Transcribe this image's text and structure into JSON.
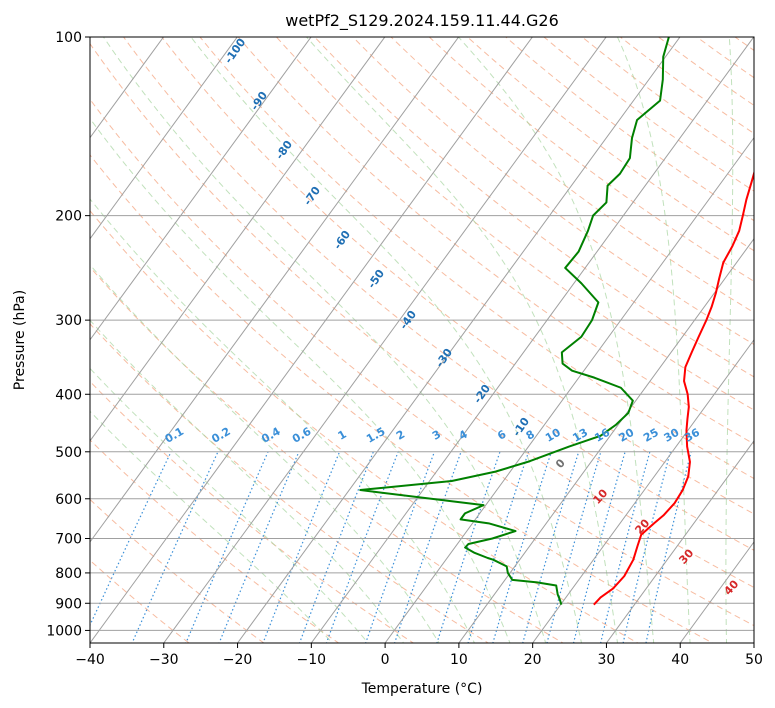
{
  "chart_data": {
    "type": "line",
    "title": "wetPf2_S129.2024.159.11.44.G26",
    "xlabel": "Temperature (°C)",
    "ylabel": "Pressure (hPa)",
    "xlim": [
      -40,
      50
    ],
    "ylim": [
      1050,
      100
    ],
    "y_scale": "log",
    "skew": true,
    "grid": true,
    "x_ticks": [
      -40,
      -30,
      -20,
      -10,
      0,
      10,
      20,
      30,
      40,
      50
    ],
    "y_ticks": [
      100,
      200,
      300,
      400,
      500,
      600,
      700,
      800,
      900,
      1000
    ],
    "series": [
      {
        "color": "#ff0000",
        "x": [
          24.5,
          24.7,
          25.5,
          25.8,
          25.4,
          24.6,
          24.0,
          24.6,
          25.1,
          25.4,
          25.2,
          24.6,
          23.4,
          21.5,
          19.8,
          18.8,
          17.8,
          16.4,
          14.6,
          13.4,
          12.8,
          12.2,
          11.6,
          11.0,
          10.2,
          9.2,
          8.2,
          7.8,
          7.2,
          6.2,
          5.1,
          4.1,
          3.1,
          2.0,
          0.6,
          -0.6,
          -1.6,
          -2.6,
          -3.4
        ],
        "y": [
          905,
          880,
          850,
          810,
          760,
          720,
          690,
          660,
          640,
          610,
          580,
          550,
          520,
          490,
          460,
          440,
          420,
          400,
          380,
          360,
          340,
          320,
          300,
          285,
          270,
          255,
          240,
          225,
          212,
          200,
          188,
          176,
          165,
          155,
          145,
          135,
          125,
          112,
          100
        ]
      },
      {
        "color": "#008000",
        "x": [
          20.1,
          19.5,
          18.6,
          17.5,
          14.6,
          11.0,
          9.7,
          8.9,
          6.4,
          5.5,
          3.2,
          1.4,
          1.5,
          4.2,
          6.6,
          2.2,
          -2.0,
          -2.0,
          -0.3,
          -18.5,
          -7.0,
          -2.0,
          1.4,
          5.5,
          8.7,
          9.7,
          10.2,
          9.6,
          6.7,
          2.1,
          -1.6,
          -3.6,
          -4.8,
          -3.7,
          -3.9,
          -4.8,
          -9.0,
          -12.7,
          -12.5,
          -13.3,
          -14.1,
          -13.6,
          -15.1,
          -14.6,
          -14.8,
          -16.5,
          -17.6,
          -16.4,
          -18.1,
          -20.3,
          -21.5
        ],
        "y": [
          905,
          890,
          870,
          840,
          830,
          822,
          800,
          780,
          760,
          755,
          740,
          725,
          715,
          700,
          680,
          660,
          650,
          635,
          615,
          580,
          560,
          540,
          520,
          490,
          470,
          450,
          430,
          410,
          390,
          375,
          365,
          355,
          340,
          320,
          300,
          280,
          260,
          245,
          230,
          212,
          200,
          190,
          178,
          170,
          160,
          148,
          138,
          128,
          118,
          108,
          100
        ]
      }
    ],
    "dry_adiabat_labels": [
      "-100",
      "-90",
      "-80",
      "-70",
      "-60",
      "-50",
      "-40",
      "-30",
      "-20",
      "-10"
    ],
    "moist_adiabat_labels": [
      "0",
      "10",
      "20",
      "30",
      "40"
    ],
    "mixing_ratio_labels": [
      "0.1",
      "0.2",
      "0.4",
      "0.6",
      "1",
      "1.5",
      "2",
      "3",
      "4",
      "6",
      "8",
      "10",
      "13",
      "16",
      "20",
      "25",
      "30",
      "36"
    ],
    "colors": {
      "temperature": "#ff0000",
      "dewpoint": "#008000",
      "dry_adiabat": "#f4a582",
      "moist_adiabat": "#a6d49f",
      "mixing_ratio": "#3a8fd8",
      "isotherm": "#a0a0a0",
      "isobar": "#a0a0a0",
      "dry_label": "#1f6fb4",
      "moist_label": "#d62728",
      "mixing_label": "#3a8fd8"
    }
  }
}
